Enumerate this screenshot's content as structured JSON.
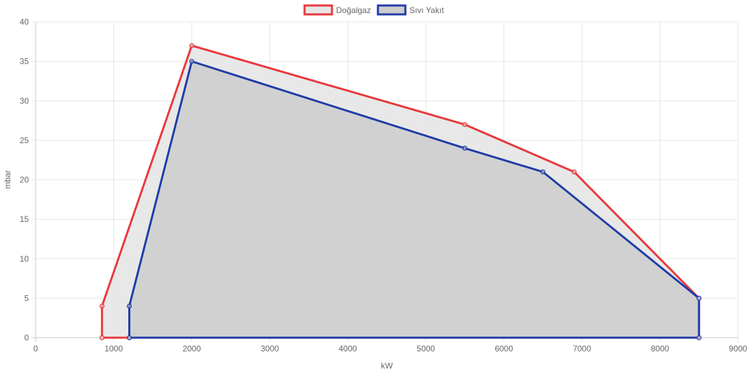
{
  "chart_data": {
    "type": "area",
    "xlabel": "kW",
    "ylabel": "mbar",
    "xlim": [
      0,
      9000
    ],
    "ylim": [
      0,
      40
    ],
    "x_ticks": [
      "0",
      "1000",
      "2000",
      "3000",
      "4000",
      "5000",
      "6000",
      "7000",
      "8000",
      "9000"
    ],
    "y_ticks": [
      "0",
      "5",
      "10",
      "15",
      "20",
      "25",
      "30",
      "35",
      "40"
    ],
    "grid": true,
    "legend_position": "top-center",
    "series": [
      {
        "name": "Doğalgaz",
        "border_color": "#e8383d",
        "fill_color": "#e6e6e6",
        "points": [
          {
            "x": 850,
            "y": 0
          },
          {
            "x": 850,
            "y": 4
          },
          {
            "x": 2000,
            "y": 37
          },
          {
            "x": 5500,
            "y": 27
          },
          {
            "x": 6900,
            "y": 21
          },
          {
            "x": 8500,
            "y": 5
          },
          {
            "x": 8500,
            "y": 0
          },
          {
            "x": 850,
            "y": 0
          }
        ]
      },
      {
        "name": "Sıvı Yakıt",
        "border_color": "#1f3ca8",
        "fill_color": "#cccccc",
        "points": [
          {
            "x": 1200,
            "y": 0
          },
          {
            "x": 1200,
            "y": 4
          },
          {
            "x": 2000,
            "y": 35
          },
          {
            "x": 5500,
            "y": 24
          },
          {
            "x": 6500,
            "y": 21
          },
          {
            "x": 8500,
            "y": 5
          },
          {
            "x": 8500,
            "y": 0
          },
          {
            "x": 1200,
            "y": 0
          }
        ]
      }
    ]
  }
}
